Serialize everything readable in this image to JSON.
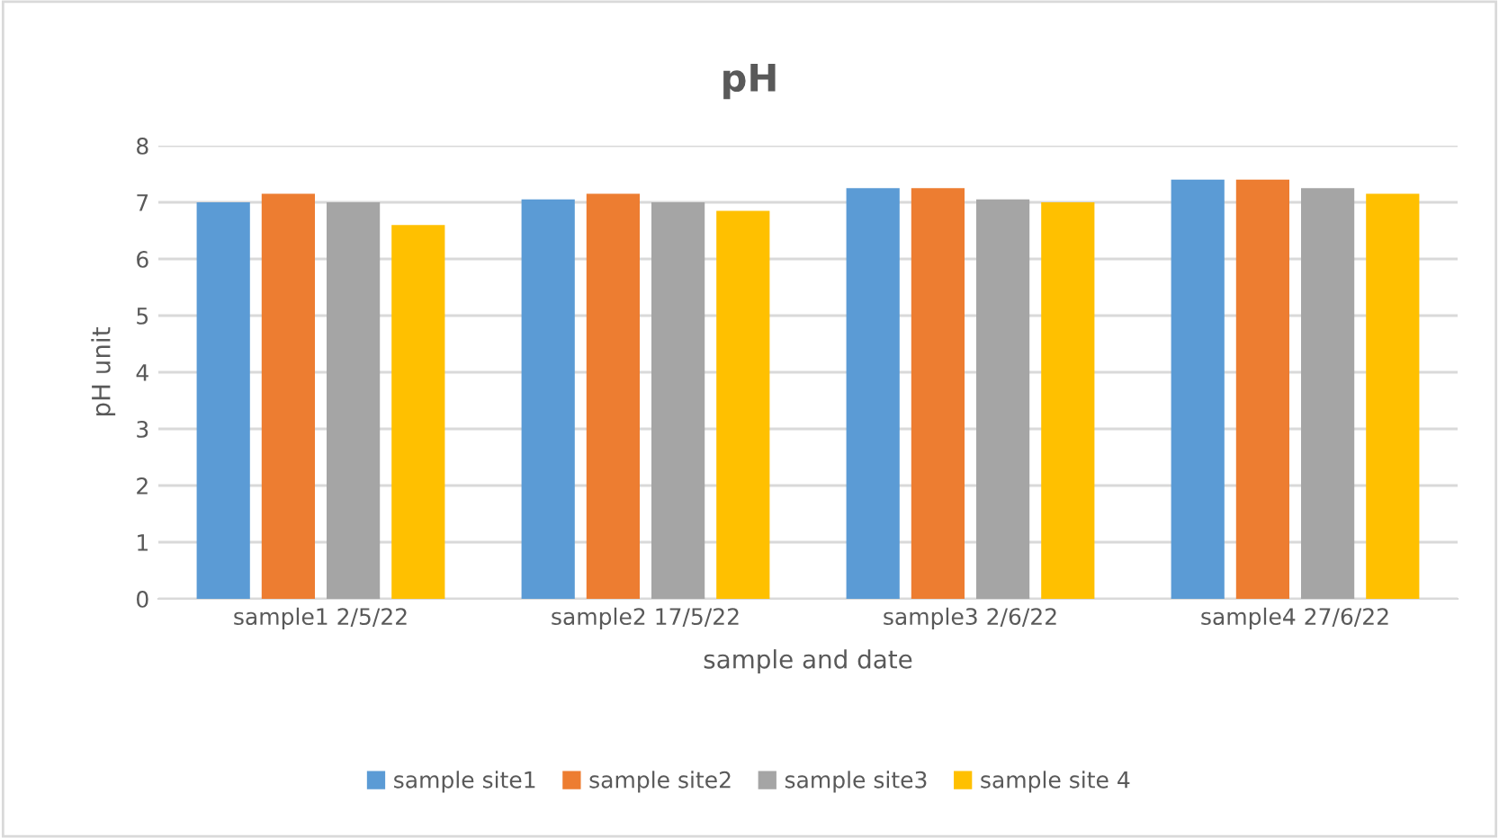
{
  "chart_data": {
    "type": "bar",
    "title": "pH",
    "xlabel": "sample and date",
    "ylabel": "pH unit",
    "categories": [
      "sample1 2/5/22",
      "sample2 17/5/22",
      "sample3 2/6/22",
      "sample4 27/6/22"
    ],
    "series": [
      {
        "name": "sample site1",
        "color": "#5b9bd5",
        "values": [
          7.0,
          7.05,
          7.25,
          7.4
        ]
      },
      {
        "name": "sample site2",
        "color": "#ed7d31",
        "values": [
          7.15,
          7.15,
          7.25,
          7.4
        ]
      },
      {
        "name": "sample site3",
        "color": "#a5a5a5",
        "values": [
          7.0,
          7.0,
          7.05,
          7.25
        ]
      },
      {
        "name": "sample site 4",
        "color": "#ffc000",
        "values": [
          6.6,
          6.85,
          7.0,
          7.15
        ]
      }
    ],
    "ylim": [
      0,
      8
    ],
    "yticks": [
      0,
      1,
      2,
      3,
      4,
      5,
      6,
      7,
      8
    ],
    "grid": "y",
    "legend": "bottom"
  }
}
